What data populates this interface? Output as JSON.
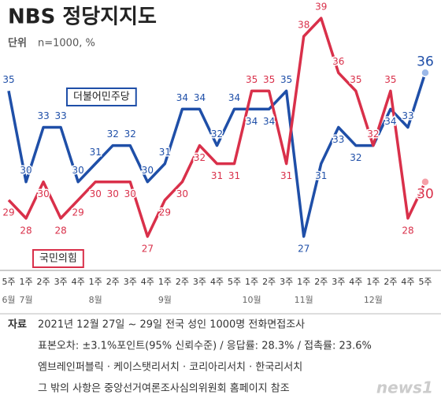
{
  "chart_data": {
    "type": "line",
    "title": "NBS 정당지지도",
    "subtitle_label": "단위",
    "subtitle": "n=1000, %",
    "categories": [
      "5주",
      "1주",
      "2주",
      "3주",
      "4주",
      "1주",
      "2주",
      "3주",
      "4주",
      "1주",
      "2주",
      "3주",
      "4주",
      "5주",
      "1주",
      "2주",
      "3주",
      "1주",
      "2주",
      "3주",
      "4주",
      "1주",
      "2주",
      "4주",
      "5주"
    ],
    "month_labels": [
      "6월",
      "7월",
      null,
      null,
      null,
      "8월",
      null,
      null,
      null,
      "9월",
      null,
      null,
      null,
      null,
      "10월",
      null,
      null,
      "11월",
      null,
      null,
      null,
      "12월",
      null,
      null,
      null
    ],
    "series": [
      {
        "name": "더불어민주당",
        "color": "#1f4fa8",
        "values": [
          35,
          30,
          33,
          33,
          30,
          31,
          32,
          32,
          30,
          31,
          34,
          34,
          32,
          34,
          34,
          34,
          35,
          27,
          31,
          33,
          32,
          32,
          34,
          33,
          36
        ]
      },
      {
        "name": "국민의힘",
        "color": "#d9304a",
        "values": [
          29,
          28,
          30,
          28,
          29,
          30,
          30,
          30,
          27,
          29,
          30,
          32,
          31,
          31,
          35,
          35,
          31,
          38,
          39,
          36,
          35,
          32,
          35,
          28,
          30
        ]
      }
    ],
    "ylim": [
      26,
      40
    ],
    "footer": {
      "source_label": "자료",
      "source": "2021년 12월 27일 ~ 29일 전국 성인 1000명 전화면접조사",
      "lines": [
        "표본오차: ±3.1%포인트(95% 신뢰수준) / 응답률: 28.3% / 접촉률: 23.6%",
        "엠브레인퍼블릭 · 케이스탯리서치 · 코리아리서치 · 한국리서치",
        "그 밖의 사항은 중앙선거여론조사심의위원회 홈페이지 참조"
      ],
      "logo": "news1"
    }
  }
}
